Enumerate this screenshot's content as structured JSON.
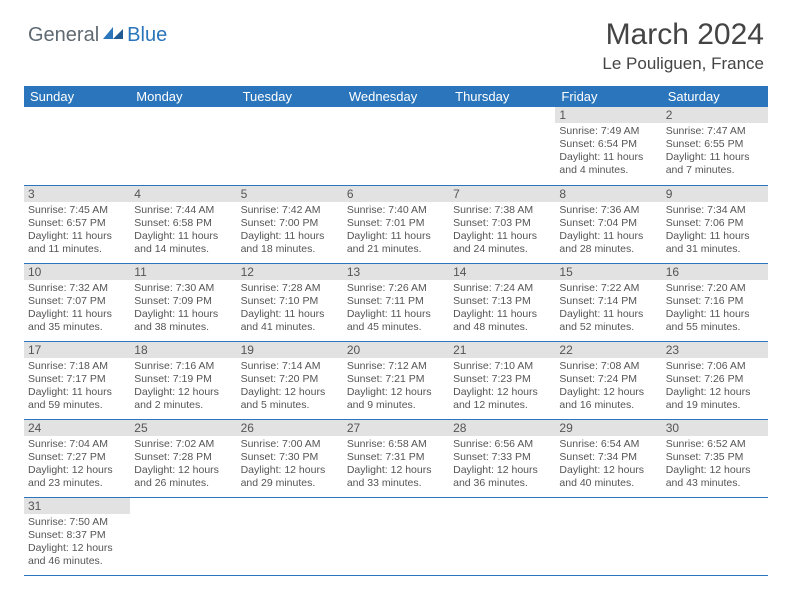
{
  "logo": {
    "part1": "General",
    "part2": "Blue"
  },
  "title": "March 2024",
  "location": "Le Pouliguen, France",
  "colors": {
    "header_bg": "#2a75bb",
    "header_text": "#ffffff",
    "daynum_bg": "#e2e2e2",
    "row_divider": "#2a75bb",
    "body_text": "#555555",
    "logo_gray": "#5f6a72",
    "logo_blue": "#2a75bb",
    "page_bg": "#ffffff"
  },
  "typography": {
    "title_size_pt": 22,
    "location_size_pt": 13,
    "header_size_pt": 10,
    "daynum_size_pt": 9,
    "cell_size_pt": 8
  },
  "weekdays": [
    "Sunday",
    "Monday",
    "Tuesday",
    "Wednesday",
    "Thursday",
    "Friday",
    "Saturday"
  ],
  "weeks": [
    [
      {
        "day": "",
        "lines": []
      },
      {
        "day": "",
        "lines": []
      },
      {
        "day": "",
        "lines": []
      },
      {
        "day": "",
        "lines": []
      },
      {
        "day": "",
        "lines": []
      },
      {
        "day": "1",
        "lines": [
          "Sunrise: 7:49 AM",
          "Sunset: 6:54 PM",
          "Daylight: 11 hours and 4 minutes."
        ]
      },
      {
        "day": "2",
        "lines": [
          "Sunrise: 7:47 AM",
          "Sunset: 6:55 PM",
          "Daylight: 11 hours and 7 minutes."
        ]
      }
    ],
    [
      {
        "day": "3",
        "lines": [
          "Sunrise: 7:45 AM",
          "Sunset: 6:57 PM",
          "Daylight: 11 hours and 11 minutes."
        ]
      },
      {
        "day": "4",
        "lines": [
          "Sunrise: 7:44 AM",
          "Sunset: 6:58 PM",
          "Daylight: 11 hours and 14 minutes."
        ]
      },
      {
        "day": "5",
        "lines": [
          "Sunrise: 7:42 AM",
          "Sunset: 7:00 PM",
          "Daylight: 11 hours and 18 minutes."
        ]
      },
      {
        "day": "6",
        "lines": [
          "Sunrise: 7:40 AM",
          "Sunset: 7:01 PM",
          "Daylight: 11 hours and 21 minutes."
        ]
      },
      {
        "day": "7",
        "lines": [
          "Sunrise: 7:38 AM",
          "Sunset: 7:03 PM",
          "Daylight: 11 hours and 24 minutes."
        ]
      },
      {
        "day": "8",
        "lines": [
          "Sunrise: 7:36 AM",
          "Sunset: 7:04 PM",
          "Daylight: 11 hours and 28 minutes."
        ]
      },
      {
        "day": "9",
        "lines": [
          "Sunrise: 7:34 AM",
          "Sunset: 7:06 PM",
          "Daylight: 11 hours and 31 minutes."
        ]
      }
    ],
    [
      {
        "day": "10",
        "lines": [
          "Sunrise: 7:32 AM",
          "Sunset: 7:07 PM",
          "Daylight: 11 hours and 35 minutes."
        ]
      },
      {
        "day": "11",
        "lines": [
          "Sunrise: 7:30 AM",
          "Sunset: 7:09 PM",
          "Daylight: 11 hours and 38 minutes."
        ]
      },
      {
        "day": "12",
        "lines": [
          "Sunrise: 7:28 AM",
          "Sunset: 7:10 PM",
          "Daylight: 11 hours and 41 minutes."
        ]
      },
      {
        "day": "13",
        "lines": [
          "Sunrise: 7:26 AM",
          "Sunset: 7:11 PM",
          "Daylight: 11 hours and 45 minutes."
        ]
      },
      {
        "day": "14",
        "lines": [
          "Sunrise: 7:24 AM",
          "Sunset: 7:13 PM",
          "Daylight: 11 hours and 48 minutes."
        ]
      },
      {
        "day": "15",
        "lines": [
          "Sunrise: 7:22 AM",
          "Sunset: 7:14 PM",
          "Daylight: 11 hours and 52 minutes."
        ]
      },
      {
        "day": "16",
        "lines": [
          "Sunrise: 7:20 AM",
          "Sunset: 7:16 PM",
          "Daylight: 11 hours and 55 minutes."
        ]
      }
    ],
    [
      {
        "day": "17",
        "lines": [
          "Sunrise: 7:18 AM",
          "Sunset: 7:17 PM",
          "Daylight: 11 hours and 59 minutes."
        ]
      },
      {
        "day": "18",
        "lines": [
          "Sunrise: 7:16 AM",
          "Sunset: 7:19 PM",
          "Daylight: 12 hours and 2 minutes."
        ]
      },
      {
        "day": "19",
        "lines": [
          "Sunrise: 7:14 AM",
          "Sunset: 7:20 PM",
          "Daylight: 12 hours and 5 minutes."
        ]
      },
      {
        "day": "20",
        "lines": [
          "Sunrise: 7:12 AM",
          "Sunset: 7:21 PM",
          "Daylight: 12 hours and 9 minutes."
        ]
      },
      {
        "day": "21",
        "lines": [
          "Sunrise: 7:10 AM",
          "Sunset: 7:23 PM",
          "Daylight: 12 hours and 12 minutes."
        ]
      },
      {
        "day": "22",
        "lines": [
          "Sunrise: 7:08 AM",
          "Sunset: 7:24 PM",
          "Daylight: 12 hours and 16 minutes."
        ]
      },
      {
        "day": "23",
        "lines": [
          "Sunrise: 7:06 AM",
          "Sunset: 7:26 PM",
          "Daylight: 12 hours and 19 minutes."
        ]
      }
    ],
    [
      {
        "day": "24",
        "lines": [
          "Sunrise: 7:04 AM",
          "Sunset: 7:27 PM",
          "Daylight: 12 hours and 23 minutes."
        ]
      },
      {
        "day": "25",
        "lines": [
          "Sunrise: 7:02 AM",
          "Sunset: 7:28 PM",
          "Daylight: 12 hours and 26 minutes."
        ]
      },
      {
        "day": "26",
        "lines": [
          "Sunrise: 7:00 AM",
          "Sunset: 7:30 PM",
          "Daylight: 12 hours and 29 minutes."
        ]
      },
      {
        "day": "27",
        "lines": [
          "Sunrise: 6:58 AM",
          "Sunset: 7:31 PM",
          "Daylight: 12 hours and 33 minutes."
        ]
      },
      {
        "day": "28",
        "lines": [
          "Sunrise: 6:56 AM",
          "Sunset: 7:33 PM",
          "Daylight: 12 hours and 36 minutes."
        ]
      },
      {
        "day": "29",
        "lines": [
          "Sunrise: 6:54 AM",
          "Sunset: 7:34 PM",
          "Daylight: 12 hours and 40 minutes."
        ]
      },
      {
        "day": "30",
        "lines": [
          "Sunrise: 6:52 AM",
          "Sunset: 7:35 PM",
          "Daylight: 12 hours and 43 minutes."
        ]
      }
    ],
    [
      {
        "day": "31",
        "lines": [
          "Sunrise: 7:50 AM",
          "Sunset: 8:37 PM",
          "Daylight: 12 hours and 46 minutes."
        ]
      },
      {
        "day": "",
        "lines": []
      },
      {
        "day": "",
        "lines": []
      },
      {
        "day": "",
        "lines": []
      },
      {
        "day": "",
        "lines": []
      },
      {
        "day": "",
        "lines": []
      },
      {
        "day": "",
        "lines": []
      }
    ]
  ]
}
